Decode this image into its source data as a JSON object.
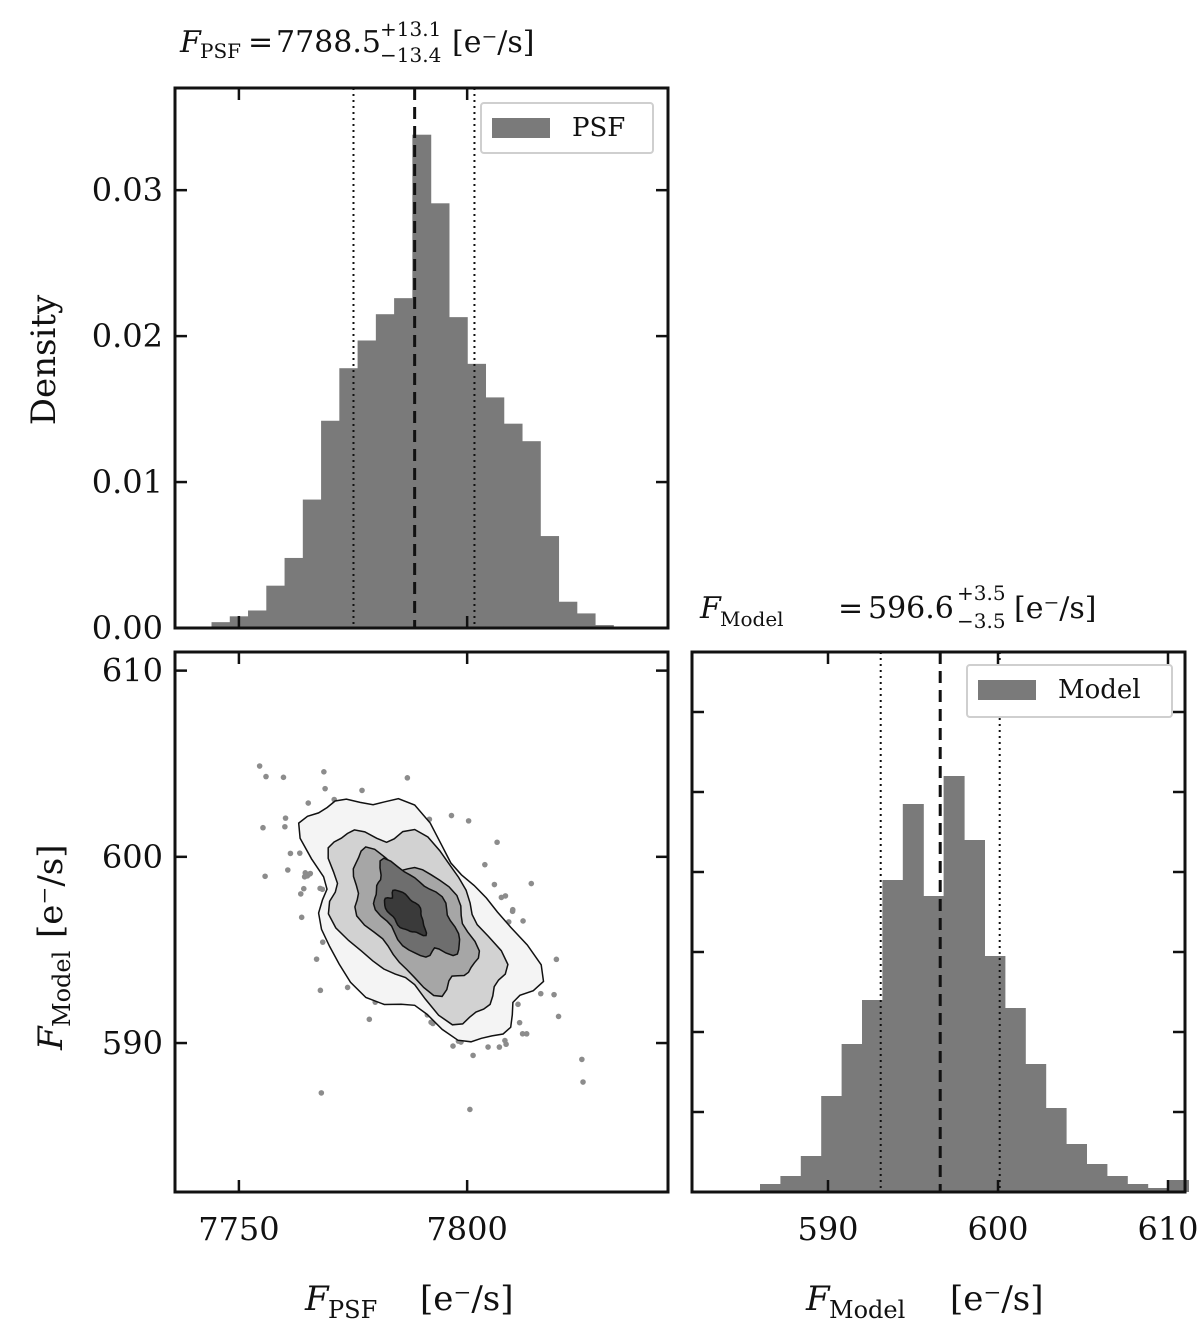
{
  "chart_data": [
    {
      "type": "bar",
      "panel": "psf-histogram",
      "title": {
        "var": "F",
        "sub": "PSF",
        "value": "7788.5",
        "sup": "+13.1",
        "inf": "−13.4",
        "unit": "[e⁻/s]"
      },
      "ylabel": "Density",
      "legend": {
        "label": "PSF",
        "placement": "top-right"
      },
      "xlim": [
        7736,
        7844
      ],
      "ylim": [
        0,
        0.037
      ],
      "yticks": [
        0.0,
        0.01,
        0.02,
        0.03
      ],
      "ytick_labels": [
        "0.00",
        "0.01",
        "0.02",
        "0.03"
      ],
      "xticks": [
        7750,
        7800
      ],
      "bin_edges": [
        7744,
        7748,
        7752,
        7756,
        7760,
        7764,
        7768,
        7772,
        7776,
        7780,
        7784,
        7788,
        7792,
        7796,
        7800,
        7804,
        7808,
        7812,
        7816,
        7820,
        7824,
        7828,
        7832
      ],
      "values": [
        0.0004,
        0.0008,
        0.0012,
        0.0029,
        0.0048,
        0.0088,
        0.0142,
        0.0178,
        0.0197,
        0.0215,
        0.0226,
        0.0338,
        0.0291,
        0.0213,
        0.0181,
        0.0158,
        0.014,
        0.0128,
        0.0063,
        0.0018,
        0.001,
        0.0002
      ],
      "median": 7788.5,
      "quantiles": [
        7775.1,
        7801.6
      ],
      "color": "#7a7a7a"
    },
    {
      "type": "bar",
      "panel": "model-histogram",
      "title": {
        "var": "F",
        "sub": "Model",
        "value": "596.6",
        "sup": "+3.5",
        "inf": "−3.5",
        "unit": "[e⁻/s]"
      },
      "legend": {
        "label": "Model",
        "placement": "top-right"
      },
      "xlim": [
        582,
        611
      ],
      "ylim": [
        0,
        0.135
      ],
      "xticks": [
        590,
        600,
        610
      ],
      "xtick_labels": [
        "590",
        "600",
        "610"
      ],
      "ytick_values": [
        0.02,
        0.04,
        0.06,
        0.08,
        0.1,
        0.12
      ],
      "xlabel": {
        "var": "F",
        "sub": "Model",
        "unit": "[e⁻/s]"
      },
      "bin_edges": [
        586,
        587.2,
        588.4,
        589.6,
        590.8,
        592,
        593.2,
        594.4,
        595.6,
        596.8,
        598,
        599.2,
        600.4,
        601.6,
        602.8,
        604,
        605.2,
        606.4,
        607.6,
        608.8,
        610,
        611.2
      ],
      "values": [
        0.002,
        0.004,
        0.009,
        0.024,
        0.037,
        0.048,
        0.078,
        0.097,
        0.074,
        0.104,
        0.088,
        0.059,
        0.046,
        0.032,
        0.021,
        0.012,
        0.007,
        0.004,
        0.002,
        0.001,
        0.003
      ],
      "median": 596.6,
      "quantiles": [
        593.1,
        600.1
      ],
      "color": "#7a7a7a"
    },
    {
      "type": "scatter",
      "panel": "joint-contour",
      "xlabel": {
        "var": "F",
        "sub": "PSF",
        "unit": "[e⁻/s]"
      },
      "ylabel": {
        "var": "F",
        "sub": "Model",
        "unit": "[e⁻/s]"
      },
      "xlim": [
        7736,
        7844
      ],
      "ylim": [
        582,
        611
      ],
      "xticks": [
        7750,
        7800
      ],
      "xtick_labels": [
        "7750",
        "7800"
      ],
      "yticks": [
        590,
        600,
        610
      ],
      "ytick_labels": [
        "590",
        "600",
        "610"
      ],
      "center": [
        7788.5,
        596.6
      ],
      "sigma": [
        13.2,
        3.5
      ],
      "correlation": -0.55,
      "n_points": 420,
      "contour_fills": [
        "#f4f4f4",
        "#d2d2d2",
        "#a6a6a6",
        "#6e6e6e",
        "#3a3a3a"
      ],
      "point_color": "#8c8c8c"
    }
  ]
}
